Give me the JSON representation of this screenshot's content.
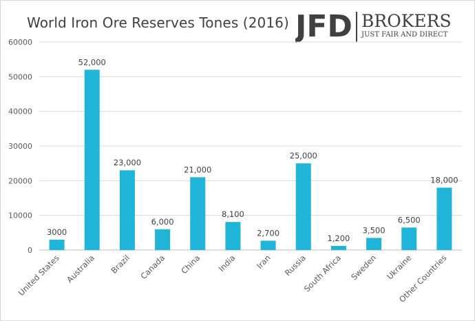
{
  "chart_data": {
    "type": "bar",
    "title": "World Iron Ore Reserves Tones (2016)",
    "categories": [
      "United States",
      "Australia",
      "Brazil",
      "Canada",
      "China",
      "India",
      "Iran",
      "Russia",
      "South Africa",
      "Sweden",
      "Ukraine",
      "Other Countries"
    ],
    "values": [
      3000,
      52000,
      23000,
      6000,
      21000,
      8100,
      2700,
      25000,
      1200,
      3500,
      6500,
      18000
    ],
    "data_labels": [
      "3000",
      "52,000",
      "23,000",
      "6,000",
      "21,000",
      "8,100",
      "2,700",
      "25,000",
      "1,200",
      "3,500",
      "6,500",
      "18,000"
    ],
    "yticks": [
      0,
      10000,
      20000,
      30000,
      40000,
      50000,
      60000
    ],
    "ytick_labels": [
      "0",
      "10000",
      "20000",
      "30000",
      "40000",
      "50000",
      "60000"
    ],
    "ylim": [
      0,
      60000
    ],
    "xlabel": "",
    "ylabel": "",
    "grid": true,
    "legend": "none",
    "bar_color": "#1fb4d8",
    "grid_color": "#d9d9d9"
  },
  "logo": {
    "mark": "JFD",
    "name": "BROKERS",
    "tagline": "JUST FAIR AND DIRECT",
    "color": "#404040"
  }
}
